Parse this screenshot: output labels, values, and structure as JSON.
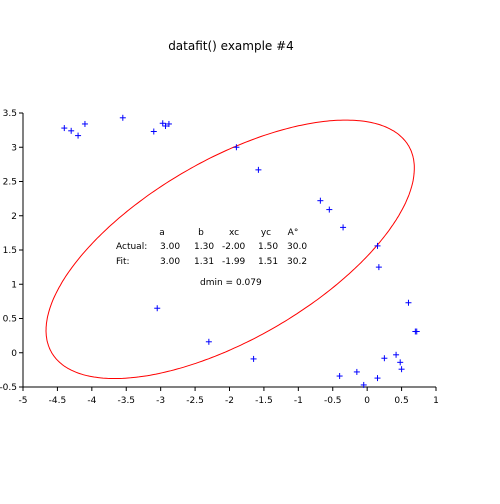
{
  "chart_data": {
    "type": "scatter",
    "title": "datafit() example #4",
    "xlabel": "",
    "ylabel": "",
    "xlim": [
      -5,
      1
    ],
    "ylim": [
      -0.5,
      3.5
    ],
    "x_ticks": [
      -5,
      -4.5,
      -4,
      -3.5,
      -3,
      -2.5,
      -2,
      -1.5,
      -1,
      -0.5,
      0,
      0.5,
      1
    ],
    "y_ticks": [
      -0.5,
      0,
      0.5,
      1,
      1.5,
      2,
      2.5,
      3,
      3.5
    ],
    "grid": false,
    "colors": {
      "points": "#0000ff",
      "fit_curve": "#ff0000",
      "axes": "#000000"
    },
    "series": [
      {
        "kind": "points",
        "marker": "+",
        "color": "#0000ff",
        "x": [
          -4.4,
          -4.3,
          -4.2,
          -4.1,
          -3.55,
          -3.1,
          -2.97,
          -2.93,
          -2.88,
          -1.9,
          -1.58,
          -0.68,
          -0.55,
          -0.35,
          0.15,
          0.17,
          0.6,
          0.7,
          0.72,
          -3.05,
          -2.3,
          -1.65,
          -0.4,
          -0.15,
          -0.05,
          0.15,
          0.25,
          0.42,
          0.48,
          0.5
        ],
        "y": [
          3.28,
          3.24,
          3.17,
          3.34,
          3.43,
          3.23,
          3.35,
          3.31,
          3.34,
          3.0,
          2.67,
          2.22,
          2.09,
          1.83,
          1.56,
          1.25,
          0.73,
          0.31,
          0.31,
          0.65,
          0.16,
          -0.09,
          -0.34,
          -0.28,
          -0.47,
          -0.37,
          -0.08,
          -0.03,
          -0.14,
          -0.24
        ]
      },
      {
        "kind": "fit-ellipse",
        "color": "#ff0000",
        "a": 3.0,
        "b": 1.31,
        "xc": -1.99,
        "yc": 1.51,
        "angle_deg": 30.2
      }
    ],
    "annotation": {
      "headers": [
        "a",
        "b",
        "xc",
        "yc",
        "A°"
      ],
      "rows": [
        {
          "label": "Actual:",
          "values": [
            "3.00",
            "1.30",
            "-2.00",
            "1.50",
            "30.0"
          ]
        },
        {
          "label": "Fit:",
          "values": [
            "3.00",
            "1.31",
            "-1.99",
            "1.51",
            "30.2"
          ]
        }
      ],
      "note": "dmin = 0.079"
    }
  }
}
